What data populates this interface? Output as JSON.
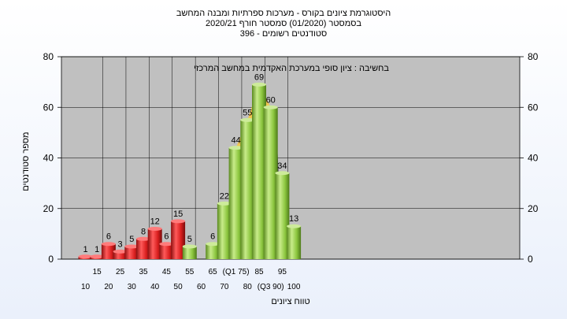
{
  "chart_data": {
    "type": "bar",
    "title_lines": [
      "היסטוגרמת ציונים בקורס - מערכות ספרתיות ומבנה המחשב",
      "בסמסטר  (01/2020)  סמסטר חורף  2020/21",
      "סטודנטים רשומים - 396"
    ],
    "annotation": "בחשיבה : ציון סופי במערכת האקדמית במחשב המרכזי",
    "xlabel": "טווח ציונים",
    "ylabel": "מספר סטודנטים",
    "ylim": [
      0,
      80
    ],
    "yticks": [
      0,
      20,
      40,
      60,
      80
    ],
    "x_labels_row1": [
      "15",
      "25",
      "35",
      "45",
      "55",
      "65",
      "(Q1 75)",
      "85",
      "95"
    ],
    "x_labels_row2": [
      "10",
      "20",
      "30",
      "40",
      "50",
      "60",
      "70",
      "80",
      "(Q3 90)",
      "100"
    ],
    "bars": [
      {
        "bin": 10,
        "value": 1,
        "color": "red"
      },
      {
        "bin": 15,
        "value": 1,
        "color": "red"
      },
      {
        "bin": 20,
        "value": 6,
        "color": "red"
      },
      {
        "bin": 25,
        "value": 3,
        "color": "red"
      },
      {
        "bin": 30,
        "value": 5,
        "color": "red"
      },
      {
        "bin": 35,
        "value": 8,
        "color": "red"
      },
      {
        "bin": 40,
        "value": 12,
        "color": "red"
      },
      {
        "bin": 45,
        "value": 6,
        "color": "red"
      },
      {
        "bin": 50,
        "value": 15,
        "color": "red"
      },
      {
        "bin": 55,
        "value": 5,
        "color": "green"
      },
      {
        "bin": 60,
        "value": null,
        "color": "green"
      },
      {
        "bin": 65,
        "value": 6,
        "color": "green"
      },
      {
        "bin": 70,
        "value": 22,
        "color": "green"
      },
      {
        "bin": 75,
        "value": 44,
        "color": "green"
      },
      {
        "bin": 80,
        "value": 55,
        "color": "green"
      },
      {
        "bin": 85,
        "value": 69,
        "color": "green"
      },
      {
        "bin": 90,
        "value": 60,
        "color": "green"
      },
      {
        "bin": 95,
        "value": 34,
        "color": "green"
      },
      {
        "bin": 100,
        "value": 13,
        "color": "green"
      }
    ],
    "iqr_highlight": {
      "from_bin": 75,
      "to_bin": 90,
      "color": "#f6c544"
    },
    "colors": {
      "plot_bg": "#c0c0c0",
      "red_bar": "#dd2222",
      "green_bar": "#8cc63f",
      "grid": "#000000"
    },
    "grid": true
  }
}
